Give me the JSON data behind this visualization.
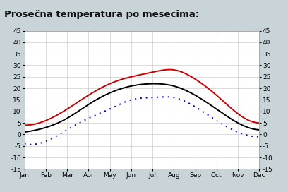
{
  "title": "Prosečna temperatura po mesecima:",
  "months": [
    "Jan",
    "Feb",
    "Mar",
    "Apr",
    "May",
    "Jun",
    "Jul",
    "Aug",
    "Sep",
    "Oct",
    "Nov",
    "Dec"
  ],
  "max_temps": [
    4,
    6,
    11,
    17,
    22,
    25,
    27,
    28,
    24,
    17,
    9,
    5
  ],
  "avg_temps": [
    1,
    3,
    7,
    13,
    18,
    21,
    22,
    21,
    17,
    11,
    5,
    2
  ],
  "min_temps": [
    -4,
    -3,
    2,
    7,
    11,
    15,
    16,
    16,
    12,
    6,
    1,
    -1
  ],
  "max_color": "#cc0000",
  "avg_color": "#000000",
  "min_color_dot": "#0000cc",
  "ylim": [
    -15,
    45
  ],
  "yticks": [
    -15,
    -10,
    -5,
    0,
    5,
    10,
    15,
    20,
    25,
    30,
    35,
    40,
    45
  ],
  "bg_color": "#c8d4d8",
  "title_bg": "#c8d4d8",
  "plot_bg": "#ffffff",
  "border_color": "#aaaaaa",
  "grid_color": "#cccccc",
  "title_fontsize": 9.5,
  "tick_fontsize": 6.5,
  "xlabel_fontsize": 7
}
